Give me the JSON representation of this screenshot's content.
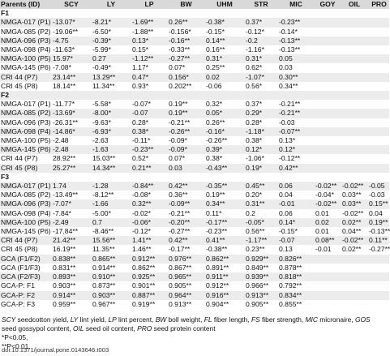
{
  "table": {
    "header": [
      "Parents (ID)",
      "SCY",
      "LY",
      "LP",
      "BW",
      "UHM",
      "STR",
      "MIC",
      "GOY",
      "OIL",
      "PRO"
    ],
    "sections": [
      {
        "label": "F1",
        "rows": [
          [
            "NMGA-017 (P1)",
            "-13.07*",
            "-8.21*",
            "-1.69**",
            "0.26**",
            "-0.38*",
            "0.37*",
            "-0.23**"
          ],
          [
            "NMGA-085 (P2)",
            "-19.06**",
            "-6.50*",
            "-1.88**",
            "-0.156*",
            "-0.15*",
            "-0.12*",
            "-0.14*"
          ],
          [
            "NMGA-096 (P3)",
            "-4.75",
            "-0.39*",
            "0.13*",
            "-0.16**",
            "0.14**",
            "-0.2",
            "-0.13**"
          ],
          [
            "NMGA-098 (P4)",
            "-11.63*",
            "-5.99*",
            "0.15*",
            "-0.33**",
            "0.16**",
            "-1.16*",
            "-0.13**"
          ],
          [
            "NMGA-100 (P5)",
            "15.97*",
            "0.27",
            "-1.12**",
            "-0.27**",
            "0.31*",
            "0.31*",
            "0.05"
          ],
          [
            "NMGA-145 (P6)",
            "-7.08*",
            "-0.49*",
            "1.17*",
            "0.07*",
            "0.25**",
            "0.62*",
            "0.03"
          ],
          [
            "CRI 44 (P7)",
            "23.14**",
            "13.29**",
            "0.47*",
            "0.156*",
            "0.02",
            "-1.07*",
            "0.30**"
          ],
          [
            "CRI 45 (P8)",
            "18.14**",
            "11.34**",
            "0.93*",
            "0.202**",
            "-0.06",
            "0.56*",
            "0.34**"
          ]
        ]
      },
      {
        "label": "F2",
        "rows": [
          [
            "NMGA-017 (P1)",
            "-11.77*",
            "-5.58*",
            "-0.07*",
            "0.19**",
            "0.32*",
            "0.37*",
            "-0.21**"
          ],
          [
            "NMGA-085 (P2)",
            "-13.69*",
            "-8.00*",
            "-0.07",
            "0.19**",
            "0.05*",
            "0.29*",
            "-0.21**"
          ],
          [
            "NMGA-096 (P3)",
            "-26.31**",
            "-9.63*",
            "0.28*",
            "-0.21**",
            "0.26**",
            "0.28*",
            "-0.03"
          ],
          [
            "NMGA-098 (P4)",
            "-14.86*",
            "-6.93*",
            "0.38*",
            "-0.26**",
            "-0.16*",
            "-1.18*",
            "-0.07**"
          ],
          [
            "NMGA-100 (P5)",
            "-2.48",
            "-2.63",
            "-0.11*",
            "-0.09*",
            "-0.26**",
            "0.38*",
            "0.13*"
          ],
          [
            "NMGA-145 (P6)",
            "-2.48",
            "-1.63",
            "-0.23**",
            "-0.09*",
            "0.39*",
            "0.12*",
            "0.12*"
          ],
          [
            "CRI 44 (P7)",
            "28.92**",
            "15.03**",
            "0.52*",
            "0.07*",
            "0.38*",
            "-1.06*",
            "-0.12**"
          ],
          [
            "CRI 45 (P8)",
            "25.27**",
            "14.34**",
            "0.21**",
            "0.03",
            "-0.43**",
            "0.19*",
            "0.42**"
          ]
        ]
      },
      {
        "label": "F3",
        "rows": [
          [
            "NMGA-017 (P1)",
            "1.74",
            "-1.28",
            "-0.84**",
            "0.42**",
            "-0.35**",
            "0.45**",
            "0.06",
            "-0.02**",
            "-0.02**",
            "-0.05"
          ],
          [
            "NMGA-085 (P2)",
            "-13.49**",
            "-8.12**",
            "-0.08*",
            "0.36**",
            "0.19**",
            "0.20*",
            "0.04",
            "-0.04*",
            "0.03**",
            "-0.03"
          ],
          [
            "NMGA-096 (P3)",
            "-7.07*",
            "-1.66",
            "0.32**",
            "-0.09**",
            "0.34**",
            "0.31**",
            "-0.01",
            "-0.02**",
            "0.03**",
            "0.15**"
          ],
          [
            "NMGA-098 (P4)",
            "-7.84*",
            "-5.00*",
            "-0.02*",
            "-0.21**",
            "0.11*",
            "0.2",
            "0.06",
            "0.01",
            "-0.02**",
            "0.04"
          ],
          [
            "NMGA-100 (P5)",
            "-2.49",
            "0.7",
            "-0.06*",
            "-0.20**",
            "-0.17**",
            "-0.05*",
            "0.14*",
            "0.02",
            "0.02**",
            "0.19**"
          ],
          [
            "NMGA-145 (P6)",
            "-17.84**",
            "-8.46**",
            "-0.12*",
            "-0.27**",
            "-0.23**",
            "0.56**",
            "-0.15*",
            "0.01",
            "0.04**",
            "-0.13**"
          ],
          [
            "CRI 44 (P7)",
            "21.42**",
            "15.56**",
            "1.41**",
            "0.42**",
            "0.41**",
            "-1.17**",
            "-0.07",
            "0.08**",
            "-0.02**",
            "0.11**"
          ],
          [
            "CRI 45 (P8)",
            "16.19**",
            "11.35**",
            "1.46**",
            "-0.17**",
            "-0.38**",
            "0.23**",
            "0.13",
            "-0.01",
            "0.02**",
            "-0.27**"
          ],
          [
            "GCA (F1/F2)",
            "0.838**",
            "0.865**",
            "0.912**",
            "0.976**",
            "0.862**",
            "0.929**",
            "0.826**"
          ],
          [
            "GCA (F1/F3)",
            "0.831**",
            "0.914**",
            "0.862**",
            "0.867**",
            "0.891**",
            "0.849**",
            "0.878**"
          ],
          [
            "GCA (F2/F3)",
            "0.893**",
            "0.910**",
            "0.925**",
            "0.965**",
            "0.911**",
            "0.939**",
            "0.818**"
          ],
          [
            "GCA-P: F1",
            "0.903**",
            "0.873**",
            "0.901**",
            "0.905**",
            "0.912**",
            "0.966**",
            "0.792**"
          ],
          [
            "GCA-P: F2",
            "0.914**",
            "0.903**",
            "0.887**",
            "0.964**",
            "0.916**",
            "0.913**",
            "0.834**"
          ],
          [
            "GCA-P: F3",
            "0.959**",
            "0.967**",
            "0.919**",
            "0.913**",
            "0.904**",
            "0.905**",
            "0.855**"
          ]
        ]
      }
    ]
  },
  "notes": {
    "abbreviations": [
      {
        "abbr": "SCY",
        "desc": " seedcotton yield, "
      },
      {
        "abbr": "LY",
        "desc": " lint yield, "
      },
      {
        "abbr": "LP",
        "desc": " lint percent, "
      },
      {
        "abbr": "BW",
        "desc": " boll weight, "
      },
      {
        "abbr": "FL",
        "desc": " fiber length, "
      },
      {
        "abbr": "FS",
        "desc": " fiber strength, "
      },
      {
        "abbr": "MIC",
        "desc": " micronaire, "
      },
      {
        "abbr": "GOS",
        "desc": " seed gossypol content, "
      },
      {
        "abbr": "OIL",
        "desc": " seed oil content, "
      },
      {
        "abbr": "PRO",
        "desc": " seed protein content"
      }
    ],
    "significance": [
      "*P<0.05,",
      "**P<0.01."
    ]
  },
  "doi": "doi:10.1371/journal.pone.0143646.t003"
}
